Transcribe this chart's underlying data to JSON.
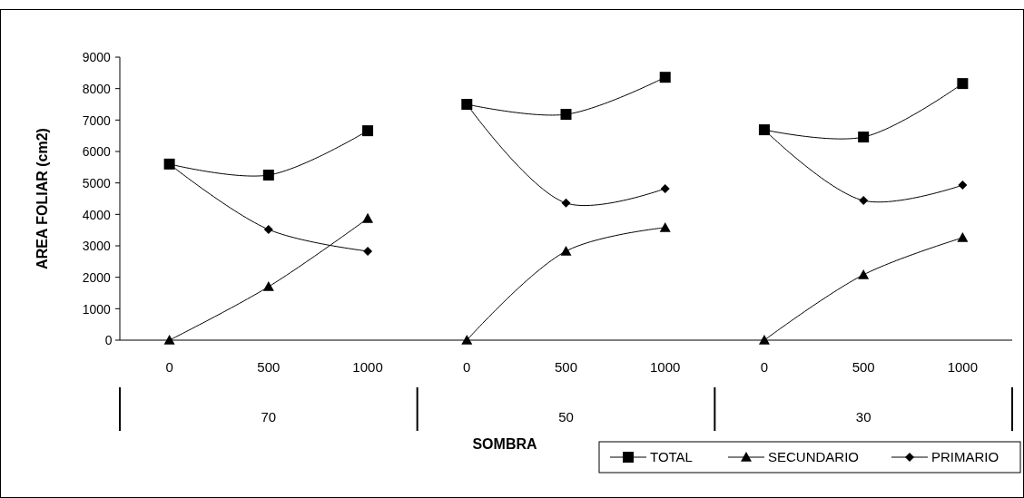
{
  "chart_data": {
    "type": "line",
    "ylabel": "AREA FOLIAR (cm2)",
    "xlabel": "SOMBRA",
    "categories": [
      "0",
      "500",
      "1000",
      "0",
      "500",
      "1000",
      "0",
      "500",
      "1000"
    ],
    "annotations": [
      "70",
      "50",
      "30"
    ],
    "ylim": [
      0,
      9000
    ],
    "yticks": [
      0,
      1000,
      2000,
      3000,
      4000,
      5000,
      6000,
      7000,
      8000,
      9000
    ],
    "grid": false,
    "legend": "bottom right",
    "line_style": "solid",
    "series": [
      {
        "name": "TOTAL",
        "color": "#000000",
        "marker": "square",
        "values": [
          5600,
          5250,
          6660,
          null,
          null,
          null,
          null,
          null,
          null
        ]
      },
      {
        "color": "#000000",
        "marker": "square",
        "values": [
          null,
          null,
          null,
          7500,
          7180,
          8360,
          null,
          null,
          null
        ]
      },
      {
        "color": "#000000",
        "marker": "square",
        "values": [
          null,
          null,
          null,
          null,
          null,
          null,
          6690,
          6460,
          8160
        ]
      },
      {
        "name": "SECUNDARIO",
        "color": "#000000",
        "marker": "triangle",
        "values": [
          0,
          1700,
          3870,
          null,
          null,
          null,
          null,
          null,
          null
        ]
      },
      {
        "color": "#000000",
        "marker": "triangle",
        "values": [
          null,
          null,
          null,
          0,
          2830,
          3580,
          null,
          null,
          null
        ]
      },
      {
        "color": "#000000",
        "marker": "triangle",
        "values": [
          null,
          null,
          null,
          null,
          null,
          null,
          0,
          2080,
          3260
        ]
      },
      {
        "name": "PRIMARIO",
        "color": "#000000",
        "marker": "diamond",
        "values": [
          5600,
          3520,
          2830,
          null,
          null,
          null,
          null,
          null,
          null
        ]
      },
      {
        "color": "#000000",
        "marker": "diamond",
        "values": [
          null,
          null,
          null,
          7500,
          4360,
          4820,
          null,
          null,
          null
        ]
      },
      {
        "color": "#000000",
        "marker": "diamond",
        "values": [
          null,
          null,
          null,
          null,
          null,
          null,
          6690,
          4440,
          4930
        ]
      }
    ]
  }
}
